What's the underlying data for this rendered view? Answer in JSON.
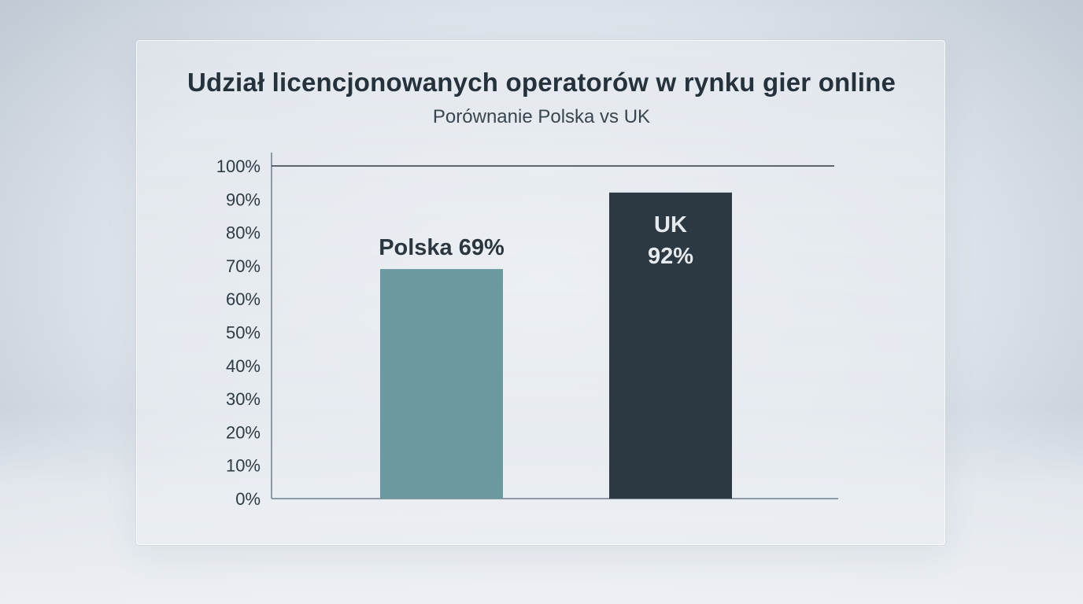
{
  "chart_data": {
    "type": "bar",
    "title": "Udział licencjonowanych operatorów w rynku gier online",
    "subtitle": "Porównanie Polska vs UK",
    "categories": [
      "Polska",
      "UK"
    ],
    "values": [
      69,
      92
    ],
    "value_labels": [
      "Polska 69%",
      "UK\n92%"
    ],
    "ylim": [
      0,
      100
    ],
    "yticks": [
      "0%",
      "10%",
      "20%",
      "30%",
      "40%",
      "50%",
      "60%",
      "70%",
      "80%",
      "90%",
      "100%"
    ],
    "reference_line": 100,
    "colors": [
      "#6a9aa0",
      "#2d3942"
    ],
    "grid": false,
    "legend": "none"
  }
}
